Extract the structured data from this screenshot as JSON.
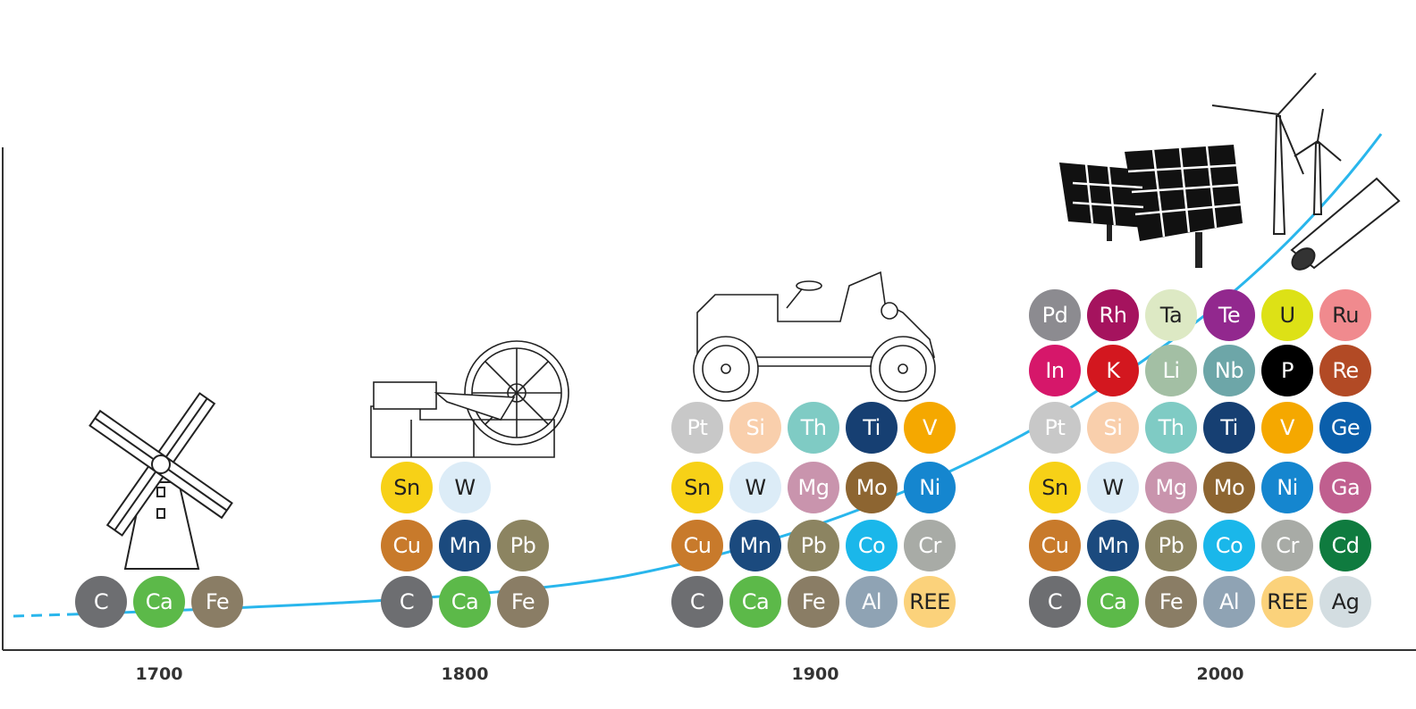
{
  "axis": {
    "years": [
      "1700",
      "1800",
      "1900",
      "2000"
    ]
  },
  "curve_color": "#29b6ec",
  "illustrations": [
    "windmill-icon",
    "steam-engine-icon",
    "vintage-car-icon",
    "solar-panels-wind-turbines-icon"
  ],
  "groups": [
    {
      "year": "1700",
      "rows": [
        [
          [
            "C",
            "#6d6e71",
            "#fff"
          ],
          [
            "Ca",
            "#5cb949",
            "#fff"
          ],
          [
            "Fe",
            "#8a7d65",
            "#fff"
          ]
        ]
      ]
    },
    {
      "year": "1800",
      "rows": [
        [
          [
            "Sn",
            "#f7d117",
            "#222"
          ],
          [
            "W",
            "#dcecf7",
            "#222"
          ]
        ],
        [
          [
            "Cu",
            "#c87a2b",
            "#fff"
          ],
          [
            "Mn",
            "#1b4a7e",
            "#fff"
          ],
          [
            "Pb",
            "#8c8461",
            "#fff"
          ]
        ],
        [
          [
            "C",
            "#6d6e71",
            "#fff"
          ],
          [
            "Ca",
            "#5cb949",
            "#fff"
          ],
          [
            "Fe",
            "#8a7d65",
            "#fff"
          ]
        ]
      ]
    },
    {
      "year": "1900",
      "rows": [
        [
          [
            "Pt",
            "#c8c8c8",
            "#fff"
          ],
          [
            "Si",
            "#f9cfac",
            "#fff"
          ],
          [
            "Th",
            "#7fcbc4",
            "#fff"
          ],
          [
            "Ti",
            "#163f72",
            "#fff"
          ],
          [
            "V",
            "#f5a800",
            "#fff"
          ]
        ],
        [
          [
            "Sn",
            "#f7d117",
            "#222"
          ],
          [
            "W",
            "#dcecf7",
            "#222"
          ],
          [
            "Mg",
            "#c994ad",
            "#fff"
          ],
          [
            "Mo",
            "#8d6531",
            "#fff"
          ],
          [
            "Ni",
            "#1586cf",
            "#fff"
          ]
        ],
        [
          [
            "Cu",
            "#c87a2b",
            "#fff"
          ],
          [
            "Mn",
            "#1b4a7e",
            "#fff"
          ],
          [
            "Pb",
            "#8c8461",
            "#fff"
          ],
          [
            "Co",
            "#1ab7ea",
            "#fff"
          ],
          [
            "Cr",
            "#a8aba6",
            "#fff"
          ]
        ],
        [
          [
            "C",
            "#6d6e71",
            "#fff"
          ],
          [
            "Ca",
            "#5cb949",
            "#fff"
          ],
          [
            "Fe",
            "#8a7d65",
            "#fff"
          ],
          [
            "Al",
            "#8fa3b4",
            "#fff"
          ],
          [
            "REE",
            "#fbd27b",
            "#222"
          ]
        ]
      ]
    },
    {
      "year": "2000",
      "rows": [
        [
          [
            "Pd",
            "#8c8b90",
            "#fff"
          ],
          [
            "Rh",
            "#a5135e",
            "#fff"
          ],
          [
            "Ta",
            "#dde9c4",
            "#222"
          ],
          [
            "Te",
            "#92288e",
            "#fff"
          ],
          [
            "U",
            "#dde116",
            "#222"
          ],
          [
            "Ru",
            "#f08a8e",
            "#222"
          ]
        ],
        [
          [
            "In",
            "#d6176a",
            "#fff"
          ],
          [
            "K",
            "#d3171f",
            "#fff"
          ],
          [
            "Li",
            "#a3bfa4",
            "#fff"
          ],
          [
            "Nb",
            "#6da6a8",
            "#fff"
          ],
          [
            "P",
            "#000000",
            "#fff"
          ],
          [
            "Re",
            "#b24a25",
            "#fff"
          ]
        ],
        [
          [
            "Pt",
            "#c8c8c8",
            "#fff"
          ],
          [
            "Si",
            "#f9cfac",
            "#fff"
          ],
          [
            "Th",
            "#7fcbc4",
            "#fff"
          ],
          [
            "Ti",
            "#163f72",
            "#fff"
          ],
          [
            "V",
            "#f5a800",
            "#fff"
          ],
          [
            "Ge",
            "#0b5fab",
            "#fff"
          ]
        ],
        [
          [
            "Sn",
            "#f7d117",
            "#222"
          ],
          [
            "W",
            "#dcecf7",
            "#222"
          ],
          [
            "Mg",
            "#c994ad",
            "#fff"
          ],
          [
            "Mo",
            "#8d6531",
            "#fff"
          ],
          [
            "Ni",
            "#1586cf",
            "#fff"
          ],
          [
            "Ga",
            "#c05f8f",
            "#fff"
          ]
        ],
        [
          [
            "Cu",
            "#c87a2b",
            "#fff"
          ],
          [
            "Mn",
            "#1b4a7e",
            "#fff"
          ],
          [
            "Pb",
            "#8c8461",
            "#fff"
          ],
          [
            "Co",
            "#1ab7ea",
            "#fff"
          ],
          [
            "Cr",
            "#a8aba6",
            "#fff"
          ],
          [
            "Cd",
            "#0f7b3f",
            "#fff"
          ]
        ],
        [
          [
            "C",
            "#6d6e71",
            "#fff"
          ],
          [
            "Ca",
            "#5cb949",
            "#fff"
          ],
          [
            "Fe",
            "#8a7d65",
            "#fff"
          ],
          [
            "Al",
            "#8fa3b4",
            "#fff"
          ],
          [
            "REE",
            "#fbd27b",
            "#222"
          ],
          [
            "Ag",
            "#d3dde1",
            "#222"
          ]
        ]
      ]
    }
  ]
}
